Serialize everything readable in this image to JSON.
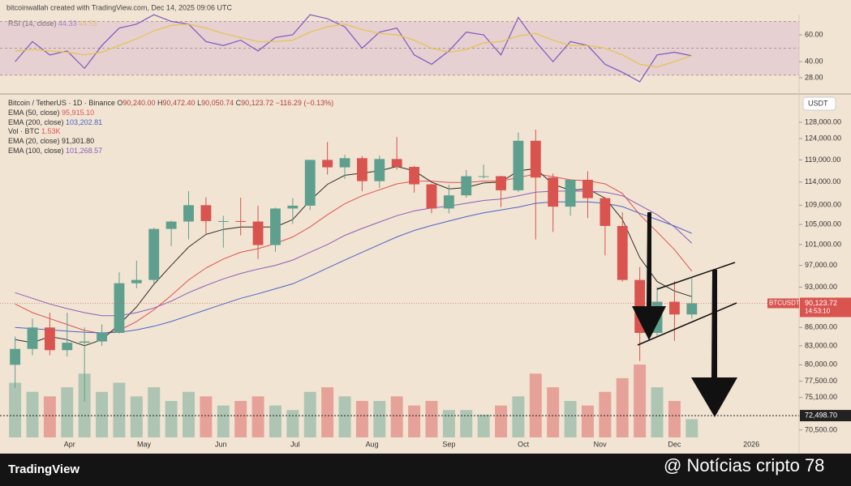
{
  "header": {
    "credit": "bitcoinwallah created with TradingView.com, Dec 14, 2025 09:06 UTC"
  },
  "footer": {
    "logo": "TradingView",
    "watermark": "@ Notícias cripto 78"
  },
  "chart_data": [
    {
      "type": "line",
      "label": "RSI (14, close)",
      "xlim": [
        -0.87,
        45.18
      ],
      "ylim": [
        17.7,
        75.1
      ],
      "yticks": [
        {
          "value": 60,
          "label": "60.00"
        },
        {
          "value": 40,
          "label": "40.00"
        },
        {
          "value": 28,
          "label": "28.00"
        }
      ],
      "levels": [
        70,
        50,
        30
      ],
      "series": [
        {
          "color": "#7e57c2",
          "value_label": "44.33",
          "values": [
            40,
            55,
            45,
            48,
            35,
            52,
            65,
            68,
            75,
            70,
            68,
            55,
            52,
            56,
            48,
            58,
            60,
            75,
            72,
            66,
            50,
            62,
            65,
            45,
            38,
            48,
            62,
            60,
            45,
            73,
            55,
            40,
            55,
            52,
            38,
            32,
            25,
            45,
            47,
            44.33
          ]
        },
        {
          "color": "#e6c34a",
          "value_label": "44.53",
          "values": [
            48,
            49,
            48,
            47,
            45,
            47,
            52,
            57,
            63,
            67,
            68,
            65,
            61,
            58,
            55,
            55,
            56,
            62,
            66,
            68,
            64,
            61,
            60,
            56,
            50,
            47,
            49,
            54,
            55,
            59,
            61,
            56,
            52,
            52,
            50,
            45,
            38,
            36,
            40,
            44.53
          ]
        }
      ]
    },
    {
      "type": "candlestick",
      "title": "Bitcoin / TetherUS · 1D · Binance",
      "ohlc_labels": [
        {
          "key": "O",
          "value": "90,240.00"
        },
        {
          "key": "H",
          "value": "90,472.40"
        },
        {
          "key": "L",
          "value": "90,050.74"
        },
        {
          "key": "C",
          "value": "90,123.72"
        }
      ],
      "change": "−116.29 (−0.13%)",
      "currency": "USDT",
      "log": true,
      "up_color": "#5e9f8e",
      "down_color": "#d9534f",
      "categories": [
        null,
        null,
        null,
        null,
        null,
        null,
        null,
        null,
        null,
        null,
        null,
        null,
        null,
        null,
        null,
        null,
        null,
        null,
        null,
        null,
        null,
        null,
        null,
        null,
        null,
        null,
        null,
        null,
        null,
        null,
        null,
        null,
        null,
        null,
        null,
        null,
        null,
        null,
        null,
        null
      ],
      "open": [
        80000,
        82500,
        86000,
        82300,
        83500,
        83700,
        85100,
        93700,
        94300,
        104100,
        105600,
        109000,
        105700,
        105700,
        105600,
        100900,
        108300,
        108900,
        119000,
        117300,
        119400,
        114200,
        119200,
        117400,
        113500,
        108300,
        111100,
        115300,
        115300,
        112200,
        123500,
        115000,
        108700,
        114500,
        110500,
        104700,
        94300,
        85100,
        90400,
        88200
      ],
      "high": [
        84500,
        87500,
        88500,
        88500,
        86000,
        86500,
        95700,
        97900,
        104300,
        105800,
        112000,
        110700,
        106800,
        110600,
        108900,
        108500,
        110500,
        119000,
        123200,
        120200,
        119900,
        120000,
        124400,
        117600,
        113600,
        113400,
        116700,
        117900,
        115400,
        125500,
        126200,
        115900,
        114000,
        116400,
        110700,
        107500,
        96700,
        93000,
        94100,
        94600
      ],
      "low": [
        76500,
        81500,
        81500,
        81300,
        74500,
        83000,
        85000,
        92800,
        93500,
        100700,
        102000,
        103100,
        100400,
        102800,
        98200,
        99600,
        105100,
        108000,
        115700,
        114700,
        112000,
        112700,
        116800,
        111700,
        107300,
        107300,
        110600,
        114800,
        108600,
        111800,
        102000,
        103500,
        106800,
        106300,
        98900,
        94000,
        80600,
        84600,
        83800,
        87500
      ],
      "close": [
        82500,
        86000,
        82300,
        83500,
        83700,
        85100,
        93700,
        94300,
        104100,
        105600,
        109000,
        105700,
        105700,
        105600,
        100900,
        108300,
        108900,
        119000,
        117300,
        119400,
        114200,
        119200,
        117400,
        113500,
        108300,
        111100,
        115300,
        115300,
        112200,
        123500,
        115000,
        108700,
        114500,
        110500,
        104700,
        94300,
        85100,
        90400,
        88200,
        90123.72
      ],
      "volume": {
        "label": "Vol · BTC",
        "value_label": "1.53K",
        "values": [
          12,
          10,
          9,
          11,
          14,
          10,
          12,
          9,
          11,
          8,
          10,
          9,
          7,
          8,
          9,
          7,
          6,
          10,
          11,
          9,
          8,
          8,
          9,
          7,
          8,
          6,
          6,
          5,
          7,
          9,
          14,
          11,
          8,
          7,
          10,
          13,
          16,
          11,
          8,
          4
        ]
      },
      "overlays": [
        {
          "name": "EMA (50, close)",
          "value_label": "95,915.10",
          "color": "#e0524f",
          "values": [
            90000,
            88500,
            87500,
            86500,
            85500,
            85000,
            85500,
            87000,
            89000,
            91500,
            94300,
            96500,
            98200,
            99500,
            100200,
            101200,
            102500,
            104500,
            107000,
            109300,
            111000,
            112300,
            113600,
            114200,
            114200,
            113900,
            113900,
            114200,
            114200,
            115000,
            115800,
            115200,
            114500,
            114300,
            113600,
            111500,
            107000,
            103500,
            100000,
            95915.1
          ]
        },
        {
          "name": "EMA (200, close)",
          "value_label": "103,202.81",
          "color": "#4a63c9",
          "values": [
            86000,
            85800,
            85600,
            85400,
            85200,
            85100,
            85200,
            85600,
            86200,
            87000,
            88000,
            89000,
            90000,
            91000,
            91800,
            92700,
            93600,
            95000,
            96500,
            98000,
            99500,
            101000,
            102500,
            103800,
            104800,
            105700,
            106600,
            107400,
            108000,
            108600,
            109400,
            109700,
            109700,
            109700,
            109400,
            108700,
            107300,
            106000,
            104700,
            103202.81
          ]
        },
        {
          "name": "EMA (20, close)",
          "value_label": "91,301.80",
          "color": "#2b2b2b",
          "values": [
            84000,
            83500,
            84500,
            84000,
            83000,
            84000,
            86500,
            89500,
            93500,
            97000,
            100500,
            103000,
            104000,
            104500,
            104500,
            104500,
            106000,
            110000,
            113500,
            115500,
            116000,
            116500,
            117500,
            116500,
            114000,
            112500,
            112800,
            113800,
            114000,
            116500,
            117000,
            113500,
            112200,
            112500,
            110500,
            106000,
            98500,
            94000,
            92300,
            91301.8
          ]
        },
        {
          "name": "EMA (100, close)",
          "value_label": "101,268.57",
          "color": "#8e5bb8",
          "values": [
            92000,
            91000,
            90000,
            89200,
            88500,
            88000,
            88000,
            88500,
            89300,
            90500,
            92000,
            93300,
            94500,
            95500,
            96300,
            97000,
            98000,
            99500,
            101000,
            102800,
            104200,
            105500,
            106800,
            107800,
            108400,
            108800,
            109400,
            110000,
            110300,
            111000,
            111800,
            112000,
            112000,
            112000,
            111800,
            111000,
            109000,
            107000,
            104500,
            101268.57
          ]
        }
      ],
      "xlim": [
        -0.87,
        45.18
      ],
      "ylim": [
        69500,
        134800
      ],
      "xticks": [
        {
          "value": 3.14,
          "label": "Apr"
        },
        {
          "value": 7.43,
          "label": "May"
        },
        {
          "value": 11.86,
          "label": "Jun"
        },
        {
          "value": 16.14,
          "label": "Jul"
        },
        {
          "value": 20.57,
          "label": "Aug"
        },
        {
          "value": 25,
          "label": "Sep"
        },
        {
          "value": 29.29,
          "label": "Oct"
        },
        {
          "value": 33.71,
          "label": "Nov"
        },
        {
          "value": 38,
          "label": "Dec"
        },
        {
          "value": 42.43,
          "label": "2026"
        }
      ],
      "yticks": [
        {
          "value": 128000,
          "label": "128,000.00"
        },
        {
          "value": 124000,
          "label": "124,000.00"
        },
        {
          "value": 119000,
          "label": "119,000.00"
        },
        {
          "value": 114000,
          "label": "114,000.00"
        },
        {
          "value": 109000,
          "label": "109,000.00"
        },
        {
          "value": 105000,
          "label": "105,000.00"
        },
        {
          "value": 101000,
          "label": "101,000.00"
        },
        {
          "value": 97000,
          "label": "97,000.00"
        },
        {
          "value": 93000,
          "label": "93,000.00"
        },
        {
          "value": 86000,
          "label": "86,000.00"
        },
        {
          "value": 83000,
          "label": "83,000.00"
        },
        {
          "value": 80000,
          "label": "80,000.00"
        },
        {
          "value": 77500,
          "label": "77,500.00"
        },
        {
          "value": 75100,
          "label": "75,100.00"
        },
        {
          "value": 70500,
          "label": "70,500.00"
        }
      ],
      "last_price": {
        "value": 90123.72,
        "label": "90,123.72",
        "symbol": "BTCUSDT",
        "countdown": "14:53:10"
      },
      "level": {
        "value": 72498.7,
        "label": "72,498.70"
      }
    }
  ]
}
